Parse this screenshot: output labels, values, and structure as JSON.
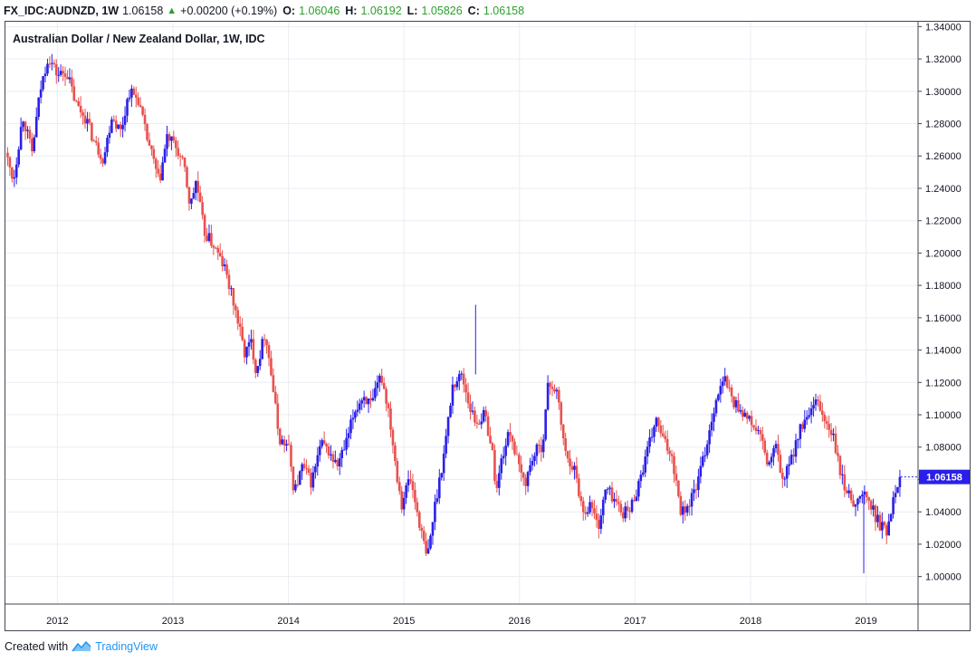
{
  "header": {
    "symbol": "FX_IDC:AUDNZD, 1W",
    "last": "1.06158",
    "change": "+0.00200 (+0.19%)",
    "o_label": "O:",
    "o_value": "1.06046",
    "h_label": "H:",
    "h_value": "1.06192",
    "l_label": "L:",
    "l_value": "1.05826",
    "c_label": "C:",
    "c_value": "1.06158"
  },
  "footer": {
    "prefix": "Created with",
    "brand": "TradingView"
  },
  "colors": {
    "up": "#2a1fe8",
    "down": "#e8514f",
    "grid": "#e9edf3",
    "price_tag": "#2a1fe8"
  },
  "chart_data": {
    "type": "candlestick",
    "title": "Australian Dollar / New Zealand Dollar, 1W, IDC",
    "x_ticks": [
      "2012",
      "2013",
      "2014",
      "2015",
      "2016",
      "2017",
      "2018",
      "2019"
    ],
    "y_ticks": [
      "1.00000",
      "1.02000",
      "1.04000",
      "1.06000",
      "1.08000",
      "1.10000",
      "1.12000",
      "1.14000",
      "1.16000",
      "1.18000",
      "1.20000",
      "1.22000",
      "1.24000",
      "1.26000",
      "1.28000",
      "1.30000",
      "1.32000",
      "1.34000"
    ],
    "ylim": [
      0.983,
      1.343
    ],
    "xlim": [
      2011.55,
      2019.45
    ],
    "last_price_label": "1.06158",
    "last_price": 1.06158,
    "grid": true,
    "anchors": [
      [
        2011.55,
        1.262
      ],
      [
        2011.62,
        1.245
      ],
      [
        2011.7,
        1.285
      ],
      [
        2011.78,
        1.262
      ],
      [
        2011.85,
        1.3
      ],
      [
        2011.92,
        1.322
      ],
      [
        2012.0,
        1.31
      ],
      [
        2012.08,
        1.312
      ],
      [
        2012.16,
        1.292
      ],
      [
        2012.25,
        1.283
      ],
      [
        2012.32,
        1.268
      ],
      [
        2012.4,
        1.258
      ],
      [
        2012.47,
        1.285
      ],
      [
        2012.55,
        1.275
      ],
      [
        2012.62,
        1.3
      ],
      [
        2012.7,
        1.295
      ],
      [
        2012.76,
        1.275
      ],
      [
        2012.82,
        1.26
      ],
      [
        2012.88,
        1.243
      ],
      [
        2012.95,
        1.272
      ],
      [
        2013.03,
        1.265
      ],
      [
        2013.1,
        1.252
      ],
      [
        2013.15,
        1.228
      ],
      [
        2013.2,
        1.245
      ],
      [
        2013.27,
        1.213
      ],
      [
        2013.35,
        1.205
      ],
      [
        2013.45,
        1.19
      ],
      [
        2013.55,
        1.162
      ],
      [
        2013.62,
        1.138
      ],
      [
        2013.68,
        1.145
      ],
      [
        2013.72,
        1.127
      ],
      [
        2013.8,
        1.152
      ],
      [
        2013.86,
        1.12
      ],
      [
        2013.92,
        1.085
      ],
      [
        2014.0,
        1.08
      ],
      [
        2014.05,
        1.052
      ],
      [
        2014.12,
        1.068
      ],
      [
        2014.2,
        1.058
      ],
      [
        2014.28,
        1.082
      ],
      [
        2014.35,
        1.077
      ],
      [
        2014.42,
        1.068
      ],
      [
        2014.5,
        1.082
      ],
      [
        2014.57,
        1.102
      ],
      [
        2014.65,
        1.112
      ],
      [
        2014.72,
        1.105
      ],
      [
        2014.8,
        1.125
      ],
      [
        2014.87,
        1.102
      ],
      [
        2014.93,
        1.068
      ],
      [
        2014.98,
        1.045
      ],
      [
        2015.05,
        1.062
      ],
      [
        2015.12,
        1.038
      ],
      [
        2015.2,
        1.01
      ],
      [
        2015.27,
        1.045
      ],
      [
        2015.35,
        1.078
      ],
      [
        2015.42,
        1.118
      ],
      [
        2015.5,
        1.125
      ],
      [
        2015.57,
        1.105
      ],
      [
        2015.62,
        1.095
      ],
      [
        2015.7,
        1.1
      ],
      [
        2015.76,
        1.08
      ],
      [
        2015.8,
        1.052
      ],
      [
        2015.85,
        1.075
      ],
      [
        2015.92,
        1.09
      ],
      [
        2016.0,
        1.065
      ],
      [
        2016.05,
        1.058
      ],
      [
        2016.12,
        1.075
      ],
      [
        2016.2,
        1.082
      ],
      [
        2016.25,
        1.12
      ],
      [
        2016.32,
        1.115
      ],
      [
        2016.4,
        1.075
      ],
      [
        2016.47,
        1.068
      ],
      [
        2016.55,
        1.04
      ],
      [
        2016.62,
        1.045
      ],
      [
        2016.68,
        1.03
      ],
      [
        2016.75,
        1.055
      ],
      [
        2016.82,
        1.048
      ],
      [
        2016.88,
        1.04
      ],
      [
        2016.95,
        1.04
      ],
      [
        2017.02,
        1.055
      ],
      [
        2017.1,
        1.075
      ],
      [
        2017.18,
        1.097
      ],
      [
        2017.25,
        1.083
      ],
      [
        2017.32,
        1.075
      ],
      [
        2017.4,
        1.04
      ],
      [
        2017.47,
        1.045
      ],
      [
        2017.55,
        1.06
      ],
      [
        2017.62,
        1.082
      ],
      [
        2017.7,
        1.11
      ],
      [
        2017.78,
        1.122
      ],
      [
        2017.85,
        1.108
      ],
      [
        2017.92,
        1.103
      ],
      [
        2018.0,
        1.095
      ],
      [
        2018.08,
        1.088
      ],
      [
        2018.15,
        1.068
      ],
      [
        2018.22,
        1.08
      ],
      [
        2018.28,
        1.058
      ],
      [
        2018.35,
        1.072
      ],
      [
        2018.42,
        1.09
      ],
      [
        2018.5,
        1.098
      ],
      [
        2018.58,
        1.108
      ],
      [
        2018.65,
        1.095
      ],
      [
        2018.72,
        1.085
      ],
      [
        2018.78,
        1.062
      ],
      [
        2018.85,
        1.05
      ],
      [
        2018.92,
        1.045
      ],
      [
        2018.98,
        1.052
      ],
      [
        2019.05,
        1.042
      ],
      [
        2019.12,
        1.032
      ],
      [
        2019.18,
        1.028
      ],
      [
        2019.25,
        1.055
      ],
      [
        2019.3,
        1.0616
      ]
    ]
  }
}
